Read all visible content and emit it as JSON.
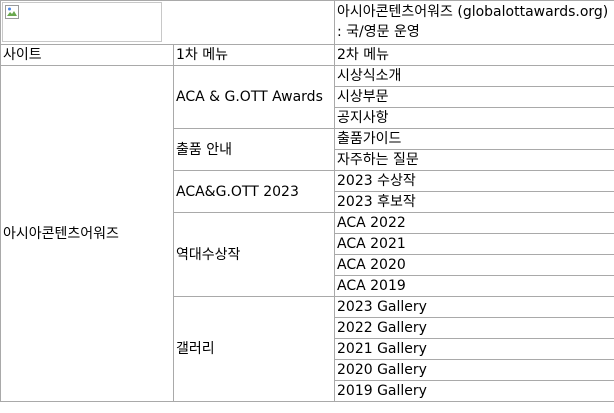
{
  "header": {
    "logo_icon": "broken-image-icon",
    "title": "아시아콘텐츠어워즈 (globalottawards.org) : 국/영문 운영"
  },
  "columns": [
    "사이트",
    "1차 메뉴",
    "2차 메뉴"
  ],
  "site": "아시아콘텐츠어워즈",
  "menus": [
    {
      "label": "ACA & G.OTT Awards",
      "items": [
        "시상식소개",
        "시상부문",
        "공지사항"
      ]
    },
    {
      "label": "출품 안내",
      "items": [
        "출품가이드",
        "자주하는 질문"
      ]
    },
    {
      "label": "ACA&G.OTT 2023",
      "items": [
        "2023 수상작",
        "2023 후보작"
      ]
    },
    {
      "label": "역대수상작",
      "items": [
        "ACA 2022",
        "ACA 2021",
        "ACA 2020",
        "ACA 2019"
      ]
    },
    {
      "label": "갤러리",
      "items": [
        "2023 Gallery",
        "2022 Gallery",
        "2021 Gallery",
        "2020 Gallery",
        "2019 Gallery"
      ]
    }
  ]
}
